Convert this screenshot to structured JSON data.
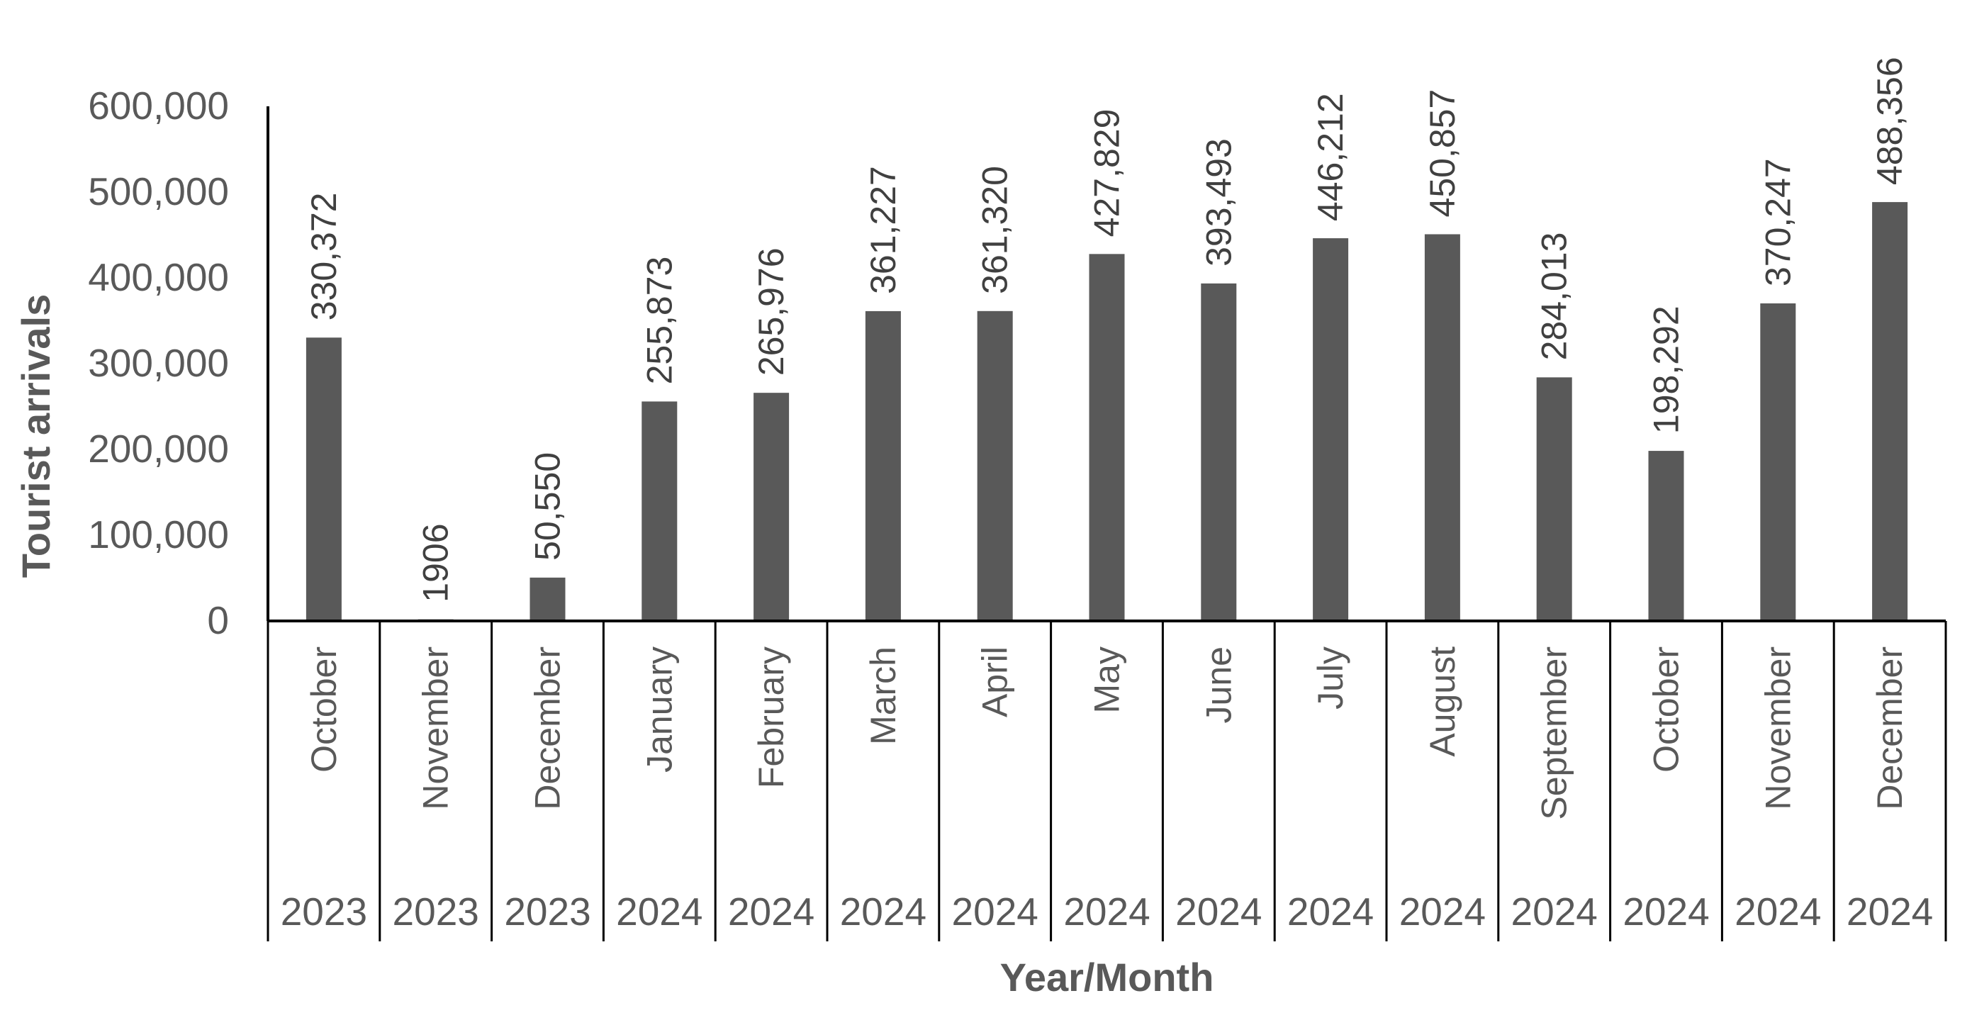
{
  "chart_data": {
    "type": "bar",
    "categories": [
      "October",
      "November",
      "December",
      "January",
      "February",
      "March",
      "April",
      "May",
      "June",
      "July",
      "August",
      "September",
      "October",
      "November",
      "December"
    ],
    "years": [
      "2023",
      "2023",
      "2023",
      "2024",
      "2024",
      "2024",
      "2024",
      "2024",
      "2024",
      "2024",
      "2024",
      "2024",
      "2024",
      "2024",
      "2024"
    ],
    "values": [
      330372,
      1906,
      50550,
      255873,
      265976,
      361227,
      361320,
      427829,
      393493,
      446212,
      450857,
      284013,
      198292,
      370247,
      488356
    ],
    "data_labels": [
      "330,372",
      "1906",
      "50,550",
      "255,873",
      "265,976",
      "361,227",
      "361,320",
      "427,829",
      "393,493",
      "446,212",
      "450,857",
      "284,013",
      "198,292",
      "370,247",
      "488,356"
    ],
    "xlabel": "Year/Month",
    "ylabel": "Tourist arrivals",
    "ylim": [
      0,
      600000
    ],
    "yticks": [
      0,
      100000,
      200000,
      300000,
      400000,
      500000,
      600000
    ],
    "ytick_labels": [
      "0",
      "100,000",
      "200,000",
      "300,000",
      "400,000",
      "500,000",
      "600,000"
    ],
    "grid": false,
    "legend": "none",
    "bar_color": "#595959"
  }
}
